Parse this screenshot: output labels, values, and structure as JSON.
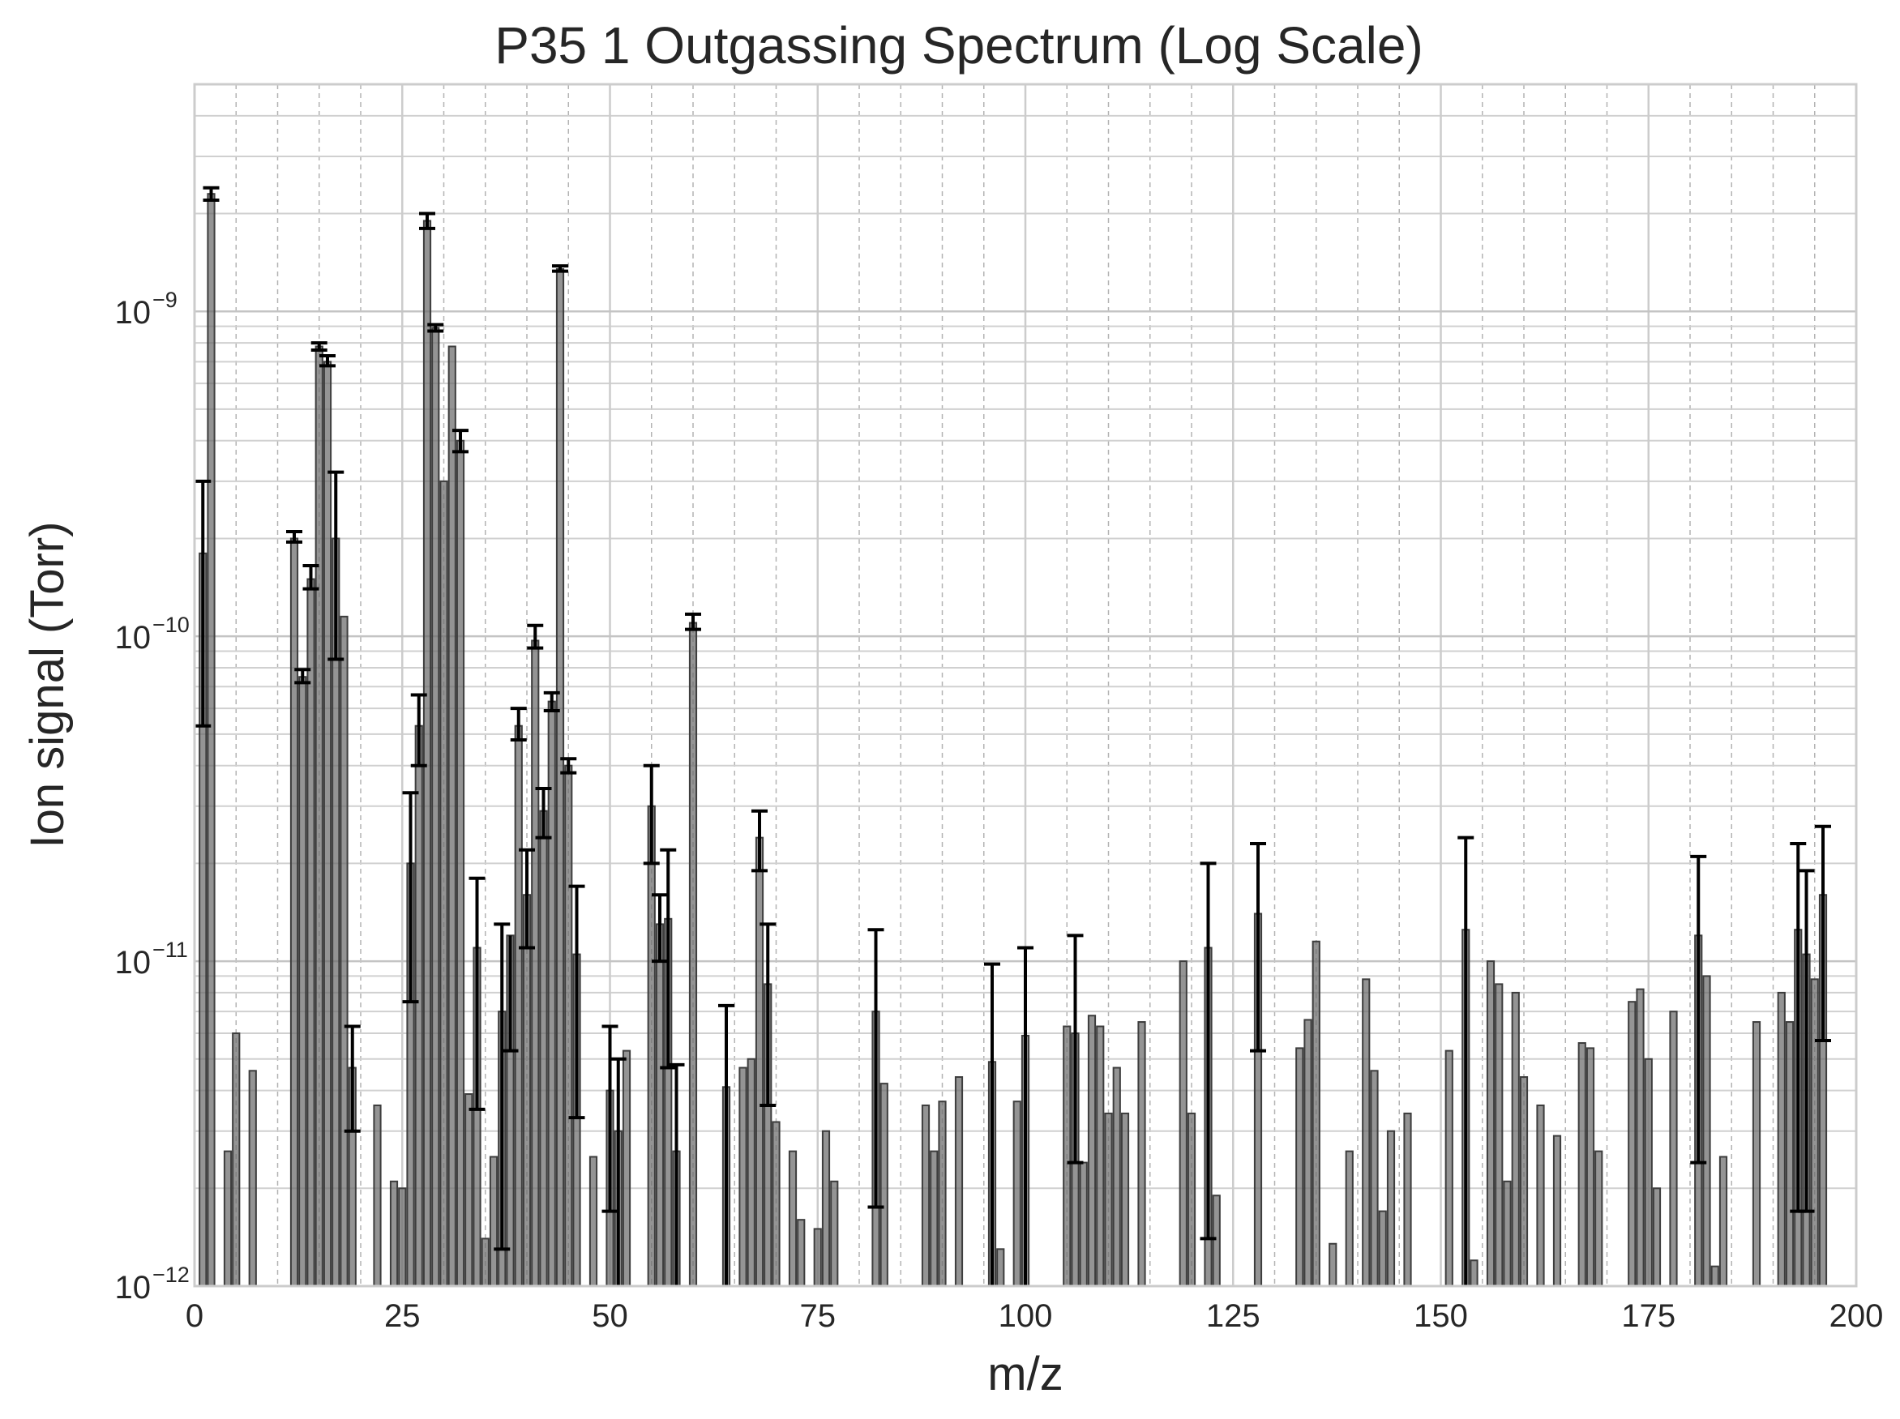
{
  "chart_data": {
    "type": "bar",
    "title": "P35 1 Outgassing Spectrum (Log Scale)",
    "xlabel": "m/z",
    "ylabel": "Ion signal (Torr)",
    "x_range": [
      0,
      200
    ],
    "y_range": [
      1e-12,
      5e-09
    ],
    "y_scale": "log",
    "grid": true,
    "minor_grid": true,
    "x_ticks": [
      0,
      25,
      50,
      75,
      100,
      125,
      150,
      175,
      200
    ],
    "y_ticks": [
      {
        "value": 1e-12,
        "base": "10",
        "exp": "−12"
      },
      {
        "value": 1e-11,
        "base": "10",
        "exp": "−11"
      },
      {
        "value": 1e-10,
        "base": "10",
        "exp": "−10"
      },
      {
        "value": 1e-09,
        "base": "10",
        "exp": "−9"
      }
    ],
    "bar_color": "#6b6b6b",
    "error_color": "#000000",
    "bars": [
      {
        "x": 1,
        "y": 1.8e-10,
        "err_low": 5.3e-11,
        "err_high": 3e-10
      },
      {
        "x": 2,
        "y": 2.3e-09,
        "err_low": 2.2e-09,
        "err_high": 2.4e-09
      },
      {
        "x": 4,
        "y": 2.6e-12
      },
      {
        "x": 5,
        "y": 6e-12
      },
      {
        "x": 7,
        "y": 4.6e-12
      },
      {
        "x": 12,
        "y": 2e-10,
        "err_low": 1.95e-10,
        "err_high": 2.1e-10
      },
      {
        "x": 13,
        "y": 7.5e-11,
        "err_low": 7.2e-11,
        "err_high": 7.9e-11
      },
      {
        "x": 14,
        "y": 1.5e-10,
        "err_low": 1.4e-10,
        "err_high": 1.65e-10
      },
      {
        "x": 15,
        "y": 7.8e-10,
        "err_low": 7.6e-10,
        "err_high": 8e-10
      },
      {
        "x": 16,
        "y": 7e-10,
        "err_low": 6.8e-10,
        "err_high": 7.3e-10
      },
      {
        "x": 17,
        "y": 2e-10,
        "err_low": 8.5e-11,
        "err_high": 3.2e-10
      },
      {
        "x": 18,
        "y": 1.15e-10
      },
      {
        "x": 19,
        "y": 4.7e-12,
        "err_low": 3e-12,
        "err_high": 6.3e-12
      },
      {
        "x": 22,
        "y": 3.6e-12
      },
      {
        "x": 24,
        "y": 2.1e-12
      },
      {
        "x": 25,
        "y": 2e-12
      },
      {
        "x": 26,
        "y": 2e-11,
        "err_low": 7.5e-12,
        "err_high": 3.3e-11
      },
      {
        "x": 27,
        "y": 5.3e-11,
        "err_low": 4e-11,
        "err_high": 6.6e-11
      },
      {
        "x": 28,
        "y": 1.9e-09,
        "err_low": 1.8e-09,
        "err_high": 2e-09
      },
      {
        "x": 29,
        "y": 8.9e-10,
        "err_low": 8.7e-10,
        "err_high": 9.1e-10
      },
      {
        "x": 30,
        "y": 3e-10
      },
      {
        "x": 31,
        "y": 7.8e-10
      },
      {
        "x": 32,
        "y": 4e-10,
        "err_low": 3.7e-10,
        "err_high": 4.3e-10
      },
      {
        "x": 33,
        "y": 3.9e-12
      },
      {
        "x": 34,
        "y": 1.1e-11,
        "err_low": 3.5e-12,
        "err_high": 1.8e-11
      },
      {
        "x": 35,
        "y": 1.4e-12
      },
      {
        "x": 36,
        "y": 2.5e-12
      },
      {
        "x": 37,
        "y": 7e-12,
        "err_low": 1.3e-12,
        "err_high": 1.3e-11
      },
      {
        "x": 38,
        "y": 1.2e-11,
        "err_low": 5.3e-12
      },
      {
        "x": 39,
        "y": 5.3e-11,
        "err_low": 4.8e-11,
        "err_high": 6e-11
      },
      {
        "x": 40,
        "y": 1.6e-11,
        "err_low": 1.1e-11,
        "err_high": 2.2e-11
      },
      {
        "x": 41,
        "y": 9.7e-11,
        "err_low": 9.2e-11,
        "err_high": 1.08e-10
      },
      {
        "x": 42,
        "y": 2.9e-11,
        "err_low": 2.4e-11,
        "err_high": 3.4e-11
      },
      {
        "x": 43,
        "y": 6.3e-11,
        "err_low": 5.9e-11,
        "err_high": 6.7e-11
      },
      {
        "x": 44,
        "y": 1.35e-09,
        "err_low": 1.33e-09,
        "err_high": 1.38e-09
      },
      {
        "x": 45,
        "y": 4e-11,
        "err_low": 3.8e-11,
        "err_high": 4.2e-11
      },
      {
        "x": 46,
        "y": 1.05e-11,
        "err_low": 3.3e-12,
        "err_high": 1.7e-11
      },
      {
        "x": 48,
        "y": 2.5e-12
      },
      {
        "x": 50,
        "y": 4e-12,
        "err_low": 1.7e-12,
        "err_high": 6.3e-12
      },
      {
        "x": 51,
        "y": 3e-12,
        "err_low": 1e-12,
        "err_high": 5e-12
      },
      {
        "x": 52,
        "y": 5.3e-12
      },
      {
        "x": 55,
        "y": 3e-11,
        "err_low": 2e-11,
        "err_high": 4e-11
      },
      {
        "x": 56,
        "y": 1.3e-11,
        "err_low": 1e-11,
        "err_high": 1.6e-11
      },
      {
        "x": 57,
        "y": 1.35e-11,
        "err_low": 4.7e-12,
        "err_high": 2.2e-11
      },
      {
        "x": 58,
        "y": 2.6e-12,
        "err_low": 1e-12,
        "err_high": 4.8e-12
      },
      {
        "x": 60,
        "y": 1.1e-10,
        "err_low": 1.05e-10,
        "err_high": 1.17e-10
      },
      {
        "x": 64,
        "y": 4.1e-12,
        "err_low": 1e-12,
        "err_high": 7.3e-12
      },
      {
        "x": 66,
        "y": 4.7e-12
      },
      {
        "x": 67,
        "y": 5e-12
      },
      {
        "x": 68,
        "y": 2.4e-11,
        "err_low": 1.9e-11,
        "err_high": 2.9e-11
      },
      {
        "x": 69,
        "y": 8.5e-12,
        "err_low": 3.6e-12,
        "err_high": 1.3e-11
      },
      {
        "x": 70,
        "y": 3.2e-12
      },
      {
        "x": 72,
        "y": 2.6e-12
      },
      {
        "x": 73,
        "y": 1.6e-12
      },
      {
        "x": 75,
        "y": 1.5e-12
      },
      {
        "x": 76,
        "y": 3e-12
      },
      {
        "x": 77,
        "y": 2.1e-12
      },
      {
        "x": 82,
        "y": 7e-12,
        "err_low": 1.75e-12,
        "err_high": 1.25e-11
      },
      {
        "x": 83,
        "y": 4.2e-12
      },
      {
        "x": 88,
        "y": 3.6e-12
      },
      {
        "x": 89,
        "y": 2.6e-12
      },
      {
        "x": 90,
        "y": 3.7e-12
      },
      {
        "x": 92,
        "y": 4.4e-12
      },
      {
        "x": 96,
        "y": 4.9e-12,
        "err_low": 1e-12,
        "err_high": 9.8e-12
      },
      {
        "x": 97,
        "y": 1.3e-12
      },
      {
        "x": 99,
        "y": 3.7e-12
      },
      {
        "x": 100,
        "y": 5.9e-12,
        "err_low": 1e-12,
        "err_high": 1.1e-11
      },
      {
        "x": 105,
        "y": 6.3e-12
      },
      {
        "x": 106,
        "y": 6e-12,
        "err_low": 2.4e-12,
        "err_high": 1.2e-11
      },
      {
        "x": 107,
        "y": 2.4e-12
      },
      {
        "x": 108,
        "y": 6.8e-12
      },
      {
        "x": 109,
        "y": 6.3e-12
      },
      {
        "x": 110,
        "y": 3.4e-12
      },
      {
        "x": 111,
        "y": 4.7e-12
      },
      {
        "x": 112,
        "y": 3.4e-12
      },
      {
        "x": 114,
        "y": 6.5e-12
      },
      {
        "x": 119,
        "y": 1e-11
      },
      {
        "x": 120,
        "y": 3.4e-12
      },
      {
        "x": 122,
        "y": 1.1e-11,
        "err_low": 1.4e-12,
        "err_high": 2e-11
      },
      {
        "x": 123,
        "y": 1.9e-12
      },
      {
        "x": 128,
        "y": 1.4e-11,
        "err_low": 5.3e-12,
        "err_high": 2.3e-11
      },
      {
        "x": 133,
        "y": 5.4e-12
      },
      {
        "x": 134,
        "y": 6.6e-12
      },
      {
        "x": 135,
        "y": 1.15e-11
      },
      {
        "x": 137,
        "y": 1.35e-12
      },
      {
        "x": 139,
        "y": 2.6e-12
      },
      {
        "x": 141,
        "y": 8.8e-12
      },
      {
        "x": 142,
        "y": 4.6e-12
      },
      {
        "x": 143,
        "y": 1.7e-12
      },
      {
        "x": 144,
        "y": 3e-12
      },
      {
        "x": 146,
        "y": 3.4e-12
      },
      {
        "x": 151,
        "y": 5.3e-12
      },
      {
        "x": 153,
        "y": 1.25e-11,
        "err_low": 1e-12,
        "err_high": 2.4e-11
      },
      {
        "x": 154,
        "y": 1.2e-12
      },
      {
        "x": 156,
        "y": 1e-11
      },
      {
        "x": 157,
        "y": 8.5e-12
      },
      {
        "x": 158,
        "y": 2.1e-12
      },
      {
        "x": 159,
        "y": 8e-12
      },
      {
        "x": 160,
        "y": 4.4e-12
      },
      {
        "x": 162,
        "y": 3.6e-12
      },
      {
        "x": 164,
        "y": 2.9e-12
      },
      {
        "x": 167,
        "y": 5.6e-12
      },
      {
        "x": 168,
        "y": 5.4e-12
      },
      {
        "x": 169,
        "y": 2.6e-12
      },
      {
        "x": 173,
        "y": 7.5e-12
      },
      {
        "x": 174,
        "y": 8.2e-12
      },
      {
        "x": 175,
        "y": 5e-12
      },
      {
        "x": 176,
        "y": 2e-12
      },
      {
        "x": 178,
        "y": 7e-12
      },
      {
        "x": 181,
        "y": 1.2e-11,
        "err_low": 2.4e-12,
        "err_high": 2.1e-11
      },
      {
        "x": 182,
        "y": 9e-12
      },
      {
        "x": 183,
        "y": 1.15e-12
      },
      {
        "x": 184,
        "y": 2.5e-12
      },
      {
        "x": 188,
        "y": 6.5e-12
      },
      {
        "x": 191,
        "y": 8e-12
      },
      {
        "x": 192,
        "y": 6.5e-12
      },
      {
        "x": 193,
        "y": 1.25e-11,
        "err_low": 1.7e-12,
        "err_high": 2.3e-11
      },
      {
        "x": 194,
        "y": 1.05e-11,
        "err_low": 1.7e-12,
        "err_high": 1.9e-11
      },
      {
        "x": 195,
        "y": 8.8e-12
      },
      {
        "x": 196,
        "y": 1.6e-11,
        "err_low": 5.7e-12,
        "err_high": 2.6e-11
      }
    ]
  }
}
